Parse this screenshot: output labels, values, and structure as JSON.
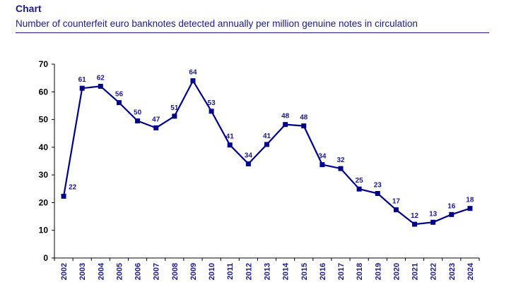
{
  "header": {
    "heading": "Chart",
    "subtitle": "Number of counterfeit euro banknotes detected annually per million genuine notes in circulation"
  },
  "colors": {
    "series": "#00008b",
    "axis": "#000000",
    "text": "#1a1a8c"
  },
  "chart_data": {
    "type": "line",
    "title": "Number of counterfeit euro banknotes detected annually per million genuine notes in circulation",
    "xlabel": "",
    "ylabel": "",
    "ylim": [
      0,
      70
    ],
    "yticks": [
      0,
      10,
      20,
      30,
      40,
      50,
      60,
      70
    ],
    "grid": false,
    "legend": "none",
    "categories": [
      "2002",
      "2003",
      "2004",
      "2005",
      "2006",
      "2007",
      "2008",
      "2009",
      "2010",
      "2011",
      "2012",
      "2013",
      "2014",
      "2015",
      "2016",
      "2017",
      "2018",
      "2019",
      "2020",
      "2021",
      "2022",
      "2023",
      "2024"
    ],
    "series": [
      {
        "values": [
          22.3,
          61.3,
          62.0,
          56.1,
          49.5,
          47.0,
          51.2,
          64.0,
          53.0,
          40.8,
          34.0,
          41.0,
          48.2,
          47.7,
          33.7,
          32.3,
          24.9,
          23.3,
          17.4,
          12.2,
          12.9,
          15.7,
          17.9
        ],
        "labels": [
          "22",
          "61",
          "62",
          "56",
          "50",
          "47",
          "51",
          "64",
          "53",
          "41",
          "34",
          "41",
          "48",
          "48",
          "34",
          "32",
          "25",
          "23",
          "17",
          "12",
          "13",
          "16",
          "18"
        ]
      }
    ]
  }
}
